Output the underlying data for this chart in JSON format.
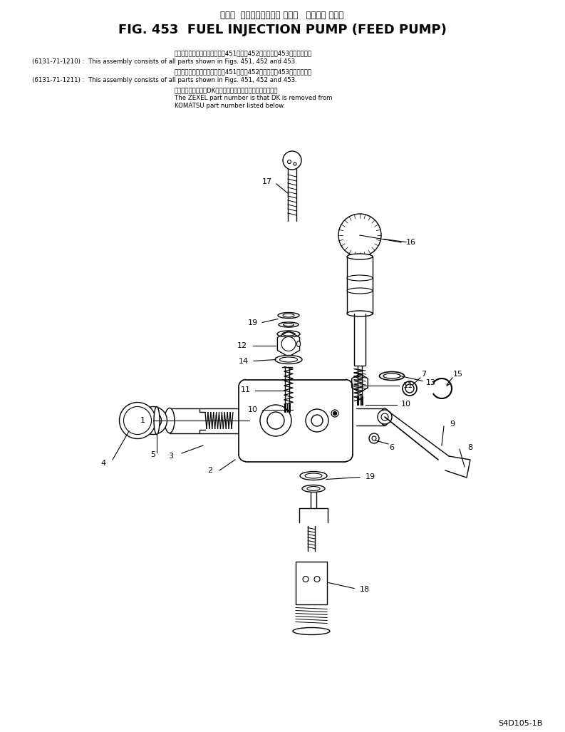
{
  "title_jp": "フェル  インジェクション ポンプ   フィード ポンプ",
  "title_en": "FIG. 453  FUEL INJECTION PUMP (FEED PUMP)",
  "note1_jp": "このアセンブリの構成部品は第451図、第452図および第453図を見ます。",
  "note1_code": "(6131-71-1210) :",
  "note1_en": "This assembly consists of all parts shown in Figs. 451, 452 and 453.",
  "note2_jp": "このアセンブリの構成部品は第451図、第452図および第453図を見ます。",
  "note2_code": "(6131-71-1211) :",
  "note2_en": "This assembly consists of all parts shown in Figs. 451, 452 and 453.",
  "note3_jp": "品番のメーカー記号DKを除いたものがゼクセルの品番です。",
  "note3_en1": "The ZEXEL part number is that DK is removed from",
  "note3_en2": "KOMATSU part number listed below.",
  "footer": "S4D105-1B",
  "bg_color": "#ffffff",
  "lc": "#000000"
}
